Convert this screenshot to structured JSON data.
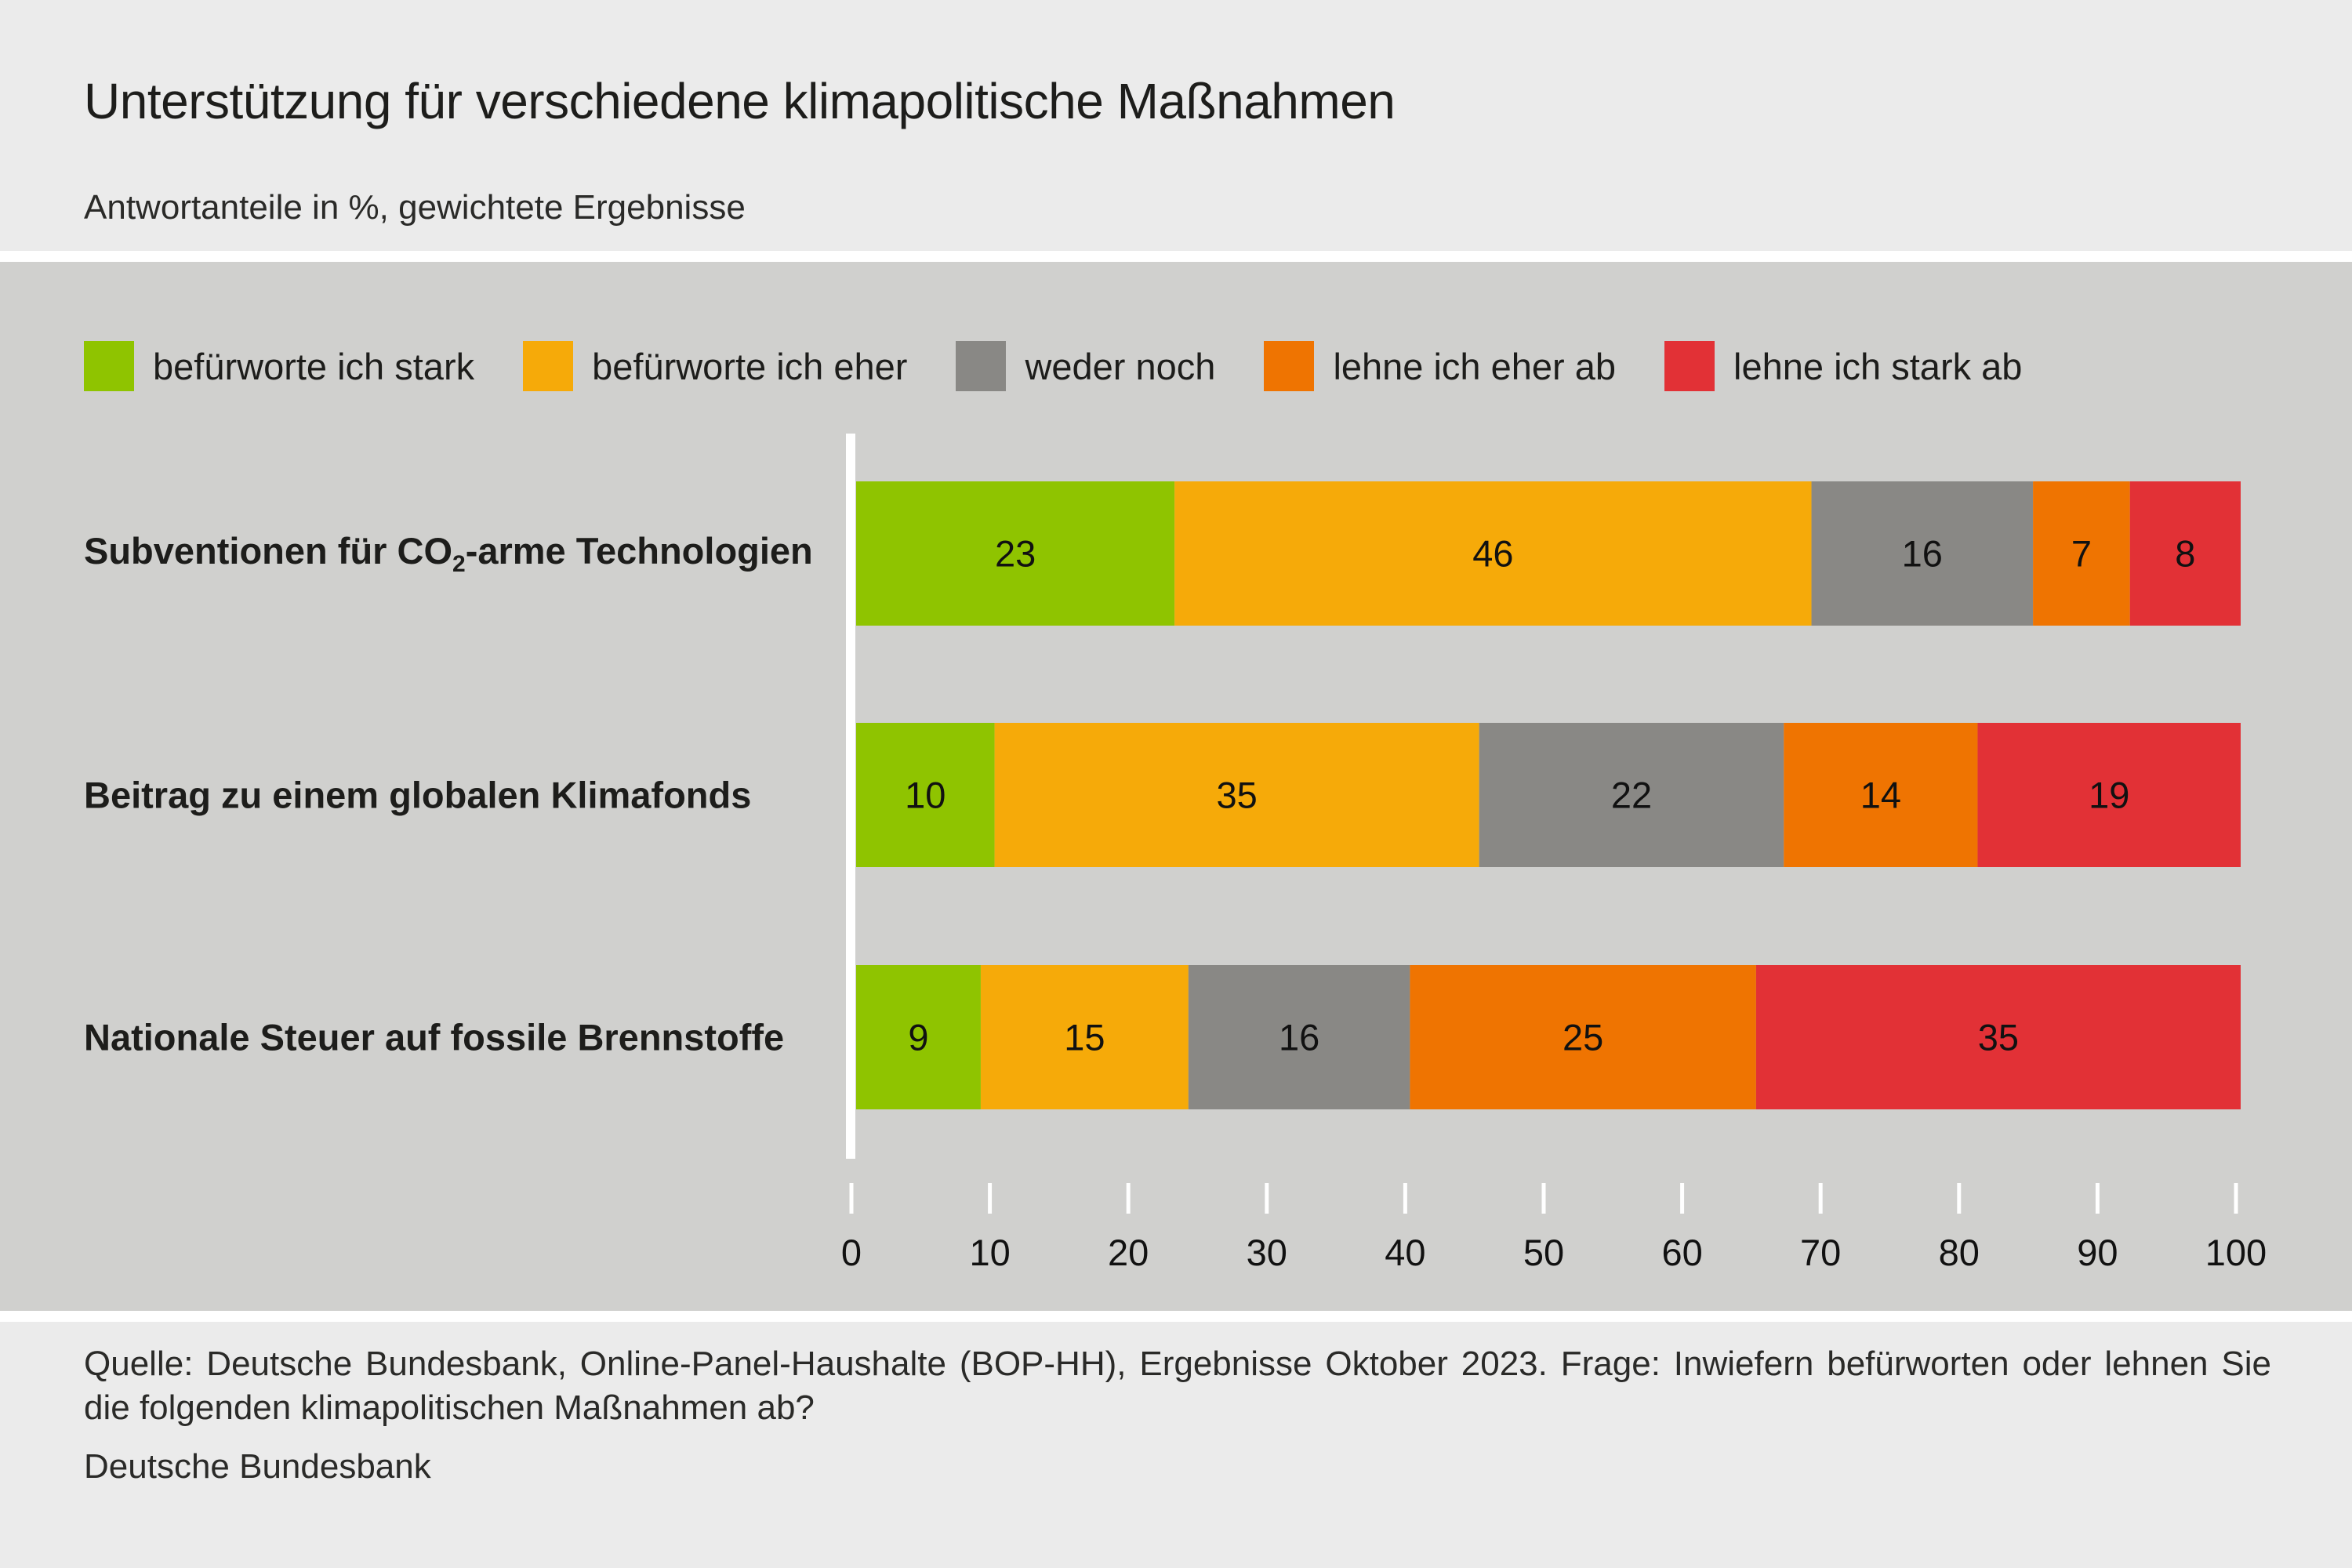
{
  "header": {
    "title": "Unterstützung für verschiedene klimapolitische Maßnahmen",
    "subtitle": "Antwortanteile in %, gewichtete Ergebnisse"
  },
  "footer": {
    "source": "Quelle: Deutsche Bundesbank, Online-Panel-Haushalte (BOP-HH), Ergebnisse Oktober 2023. Frage: Inwiefern befürworten oder lehnen Sie die folgenden klimapolitischen Maßnahmen ab?",
    "publisher": "Deutsche Bundesbank"
  },
  "colors": {
    "top_background": "#EBEBEB",
    "chart_background": "#D0D0CE",
    "separator": "#FFFFFF",
    "axis": "#FFFFFF"
  },
  "chart_data": {
    "type": "bar",
    "orientation": "horizontal",
    "stacked": true,
    "title": "Unterstützung für verschiedene klimapolitische Maßnahmen",
    "subtitle": "Antwortanteile in %, gewichtete Ergebnisse",
    "xlabel": "",
    "ylabel": "",
    "xlim": [
      0,
      100
    ],
    "xticks": [
      0,
      10,
      20,
      30,
      40,
      50,
      60,
      70,
      80,
      90,
      100
    ],
    "grid": false,
    "legend_position": "top-left",
    "categories": [
      {
        "label_main": "Subventionen für CO",
        "label_sub": "2",
        "label_tail": "-arme Technologien",
        "label": "Subventionen für CO2-arme Technologien"
      },
      {
        "label_main": "Beitrag zu einem globalen Klimafonds",
        "label_sub": "",
        "label_tail": "",
        "label": "Beitrag zu einem globalen Klimafonds"
      },
      {
        "label_main": "Nationale Steuer auf fossile Brennstoffe",
        "label_sub": "",
        "label_tail": "",
        "label": "Nationale Steuer auf fossile Brennstoffe"
      }
    ],
    "series": [
      {
        "name": "befürworte ich stark",
        "color": "#8FC400",
        "values": [
          23,
          10,
          9
        ]
      },
      {
        "name": "befürworte ich eher",
        "color": "#F6AA09",
        "values": [
          46,
          35,
          15
        ]
      },
      {
        "name": "weder noch",
        "color": "#898885",
        "values": [
          16,
          22,
          16
        ]
      },
      {
        "name": "lehne ich eher ab",
        "color": "#EF7401",
        "values": [
          7,
          14,
          25
        ]
      },
      {
        "name": "lehne ich stark ab",
        "color": "#E23136",
        "values": [
          8,
          19,
          35
        ]
      }
    ]
  }
}
